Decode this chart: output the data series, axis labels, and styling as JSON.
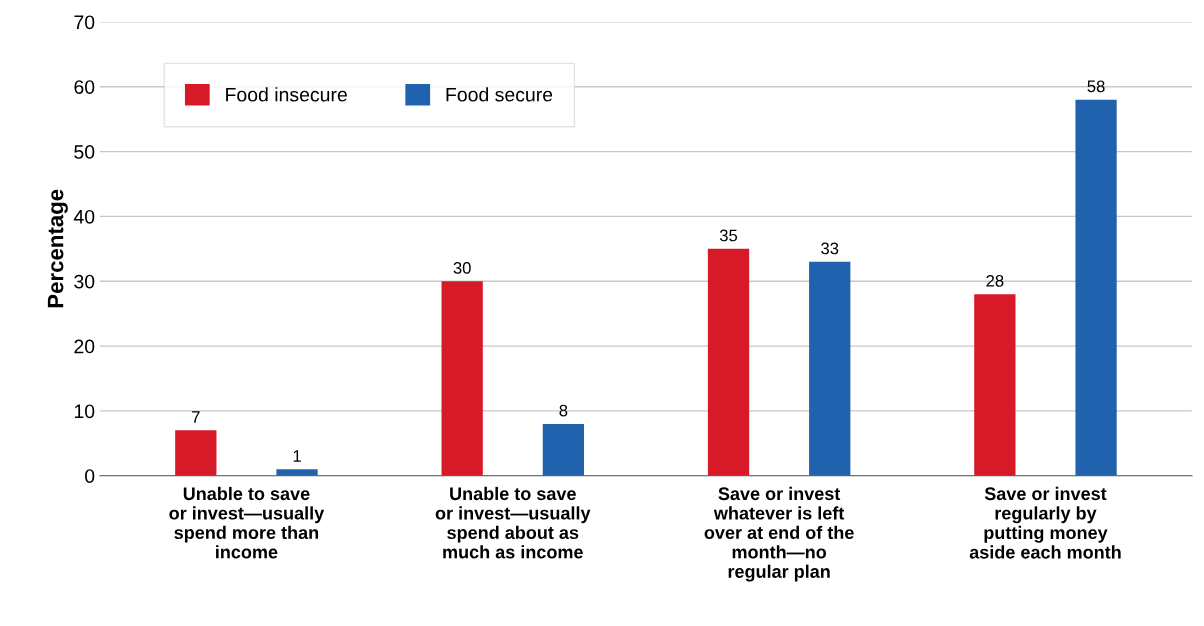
{
  "chart_data": {
    "type": "bar",
    "ylabel": "Percentage",
    "categories": [
      "Unable to save\nor invest—usually\nspend more than\nincome",
      "Unable to save\nor invest—usually\nspend about as\nmuch as income",
      "Save or invest\nwhatever is left\nover at end of the\nmonth—no\nregular plan",
      "Save or invest\nregularly by\nputting money\naside each month"
    ],
    "series": [
      {
        "name": "Food insecure",
        "color": "#d71a28",
        "values": [
          7,
          30,
          35,
          28
        ]
      },
      {
        "name": "Food secure",
        "color": "#2062ae",
        "values": [
          1,
          8,
          33,
          58
        ]
      }
    ],
    "ylim": [
      0,
      70
    ],
    "yticks": [
      0,
      10,
      20,
      30,
      40,
      50,
      60,
      70
    ],
    "grid": "y",
    "legend": "top left",
    "data_labels": true
  }
}
